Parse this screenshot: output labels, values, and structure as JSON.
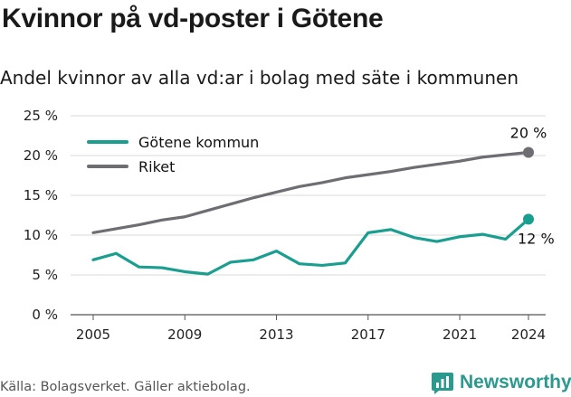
{
  "title": "Kvinnor på vd-poster i Götene",
  "subtitle": "Andel kvinnor av alla vd:ar i bolag med säte i kommunen",
  "source": "Källa: Bolagsverket. Gäller aktiebolag.",
  "brand": "Newsworthy",
  "colors": {
    "gotene": "#1a9e8f",
    "riket": "#6d6d72",
    "grid": "#d9d9d9",
    "brand": "#2b9a8e"
  },
  "chart_data": {
    "type": "line",
    "x": [
      2005,
      2006,
      2007,
      2008,
      2009,
      2010,
      2011,
      2012,
      2013,
      2014,
      2015,
      2016,
      2017,
      2018,
      2019,
      2020,
      2021,
      2022,
      2023,
      2024
    ],
    "series": [
      {
        "name": "Götene kommun",
        "color": "#1a9e8f",
        "values": [
          6.9,
          7.7,
          6.0,
          5.9,
          5.4,
          5.1,
          6.6,
          6.9,
          8.0,
          6.4,
          6.2,
          6.5,
          10.3,
          10.7,
          9.7,
          9.2,
          9.8,
          10.1,
          9.5,
          12.0
        ],
        "end_label": "12 %"
      },
      {
        "name": "Riket",
        "color": "#6d6d72",
        "values": [
          10.3,
          10.8,
          11.3,
          11.9,
          12.3,
          13.1,
          13.9,
          14.7,
          15.4,
          16.1,
          16.6,
          17.2,
          17.6,
          18.0,
          18.5,
          18.9,
          19.3,
          19.8,
          20.1,
          20.4
        ],
        "end_label": "20 %"
      }
    ],
    "x_ticks": [
      2005,
      2009,
      2013,
      2017,
      2021,
      2024
    ],
    "y_ticks": [
      0,
      5,
      10,
      15,
      20,
      25
    ],
    "y_tick_labels": [
      "0 %",
      "5 %",
      "10 %",
      "15 %",
      "20 %",
      "25 %"
    ],
    "ylim": [
      0,
      25
    ],
    "xlim": [
      2005,
      2024
    ],
    "grid": true,
    "legend_position": "top-left"
  }
}
